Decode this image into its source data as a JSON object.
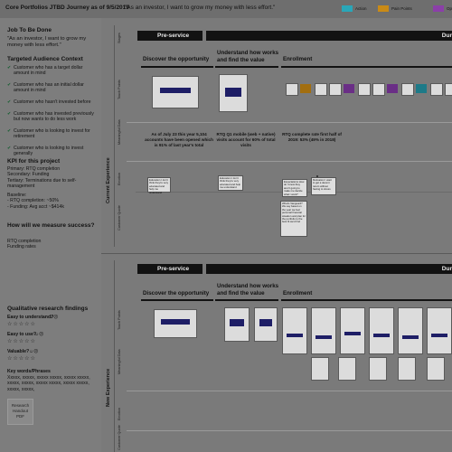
{
  "header": {
    "title": "Core Portfolios JTBD Journey as of 9/5/2019",
    "subtitle": "\"As an investor, I want to grow my money with less effort.\"",
    "legend": [
      {
        "label": "Action",
        "color": "#2aa6b8"
      },
      {
        "label": "Pain Points",
        "color": "#c98a16"
      },
      {
        "label": "Op",
        "color": "#8b3fa8"
      }
    ]
  },
  "left": {
    "job_heading": "Job To Be Done",
    "job_text": "\"As an investor, I want to grow my money with less effort.\"",
    "audience_heading": "Targeted Audience Context",
    "audience_items": [
      "Customer who has a target dollar amount in mind",
      "Customer who has an initial dollar amount in mind",
      "Customer who hasn't invested before",
      "Customer who has invested previously but now wants to do less work",
      "Customer who is looking to invest for retirement",
      "Customer who is looking to invest generally"
    ],
    "kpi_heading": "KPI for this project",
    "kpi_lines": [
      "Primary: RTQ completion",
      "Secondary: Funding",
      "Tertiary: Terminations due to self-management"
    ],
    "baseline_lines": [
      "Baseline:",
      "- RTQ completion: ~50%",
      "- Funding: Avg acct ~$414k"
    ],
    "measure_heading": "How will we measure success?",
    "measure_lines": [
      "RTQ completion",
      "Funding rates"
    ],
    "qual_heading": "Qualitative research findings",
    "qual_items": [
      {
        "label": "Easy to understand?",
        "faces": "☺☹"
      },
      {
        "label": "Easy to use?",
        "faces": "☺☹"
      },
      {
        "label": "Valuable?",
        "faces": "☺☹"
      }
    ],
    "stars": "☆☆☆☆☆",
    "keywords_heading": "Key words/Phrases",
    "keywords_text": "Xxxxx, xxxxx, xxxxx xxxxx, xxxxx xxxxx, xxxxx, xxxxx, xxxxx xxxxx, xxxxx xxxxx, xxxxx, xxxxx,",
    "pdf_label": "Research Handout PDF"
  },
  "current": {
    "section_label": "Current Experience",
    "row_labels": [
      "Stages",
      "Touch Points",
      "Meaningful Data",
      "Emotion",
      "Customer Quote"
    ],
    "phase_preservice": "Pre-service",
    "phase_during": "Dur",
    "stages": [
      "Discover the opportunity",
      "Understand how works and find the value",
      "Enrollment"
    ],
    "notes": [
      "As of July 23 this year 5,104 accounts have been opened which is 91% of last year's total",
      "RTQ Q1 mobile (web + native) visits account for 60% of total visits",
      "RTQ complete rate first half of 2019: 53% (49% in 2018)"
    ],
    "bubbles": [
      "Education\nI don't think they're very educated and help me understand",
      "Expectations\nHow do I know they aren't going to make me decide what I want?",
      "Motivation\nI want to get a decent return without having to stress",
      "What's Vanguard? We say based on the year we feel personal financial situation and plan for the portfolio to the best fit we'd find"
    ]
  },
  "new": {
    "section_label": "New Experience",
    "row_labels": [
      "Touch Points",
      "Meaningful Data",
      "Emotion",
      "Customer Quote"
    ],
    "phase_preservice": "Pre-service",
    "phase_during": "Dur",
    "stages": [
      "Discover the opportunity",
      "Understand how works and find the value",
      "Enrollment"
    ]
  }
}
